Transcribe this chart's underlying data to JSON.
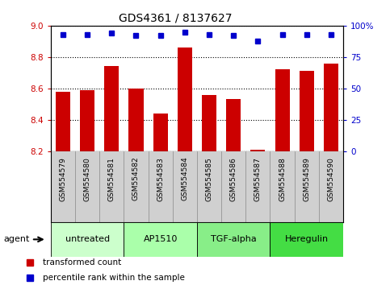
{
  "title": "GDS4361 / 8137627",
  "samples": [
    "GSM554579",
    "GSM554580",
    "GSM554581",
    "GSM554582",
    "GSM554583",
    "GSM554584",
    "GSM554585",
    "GSM554586",
    "GSM554587",
    "GSM554588",
    "GSM554589",
    "GSM554590"
  ],
  "bar_values": [
    8.58,
    8.59,
    8.74,
    8.6,
    8.44,
    8.86,
    8.56,
    8.53,
    8.21,
    8.72,
    8.71,
    8.76
  ],
  "dot_values": [
    93,
    93,
    94,
    92,
    92,
    95,
    93,
    92,
    88,
    93,
    93,
    93
  ],
  "bar_color": "#cc0000",
  "dot_color": "#0000cc",
  "ylim_left": [
    8.2,
    9.0
  ],
  "ylim_right": [
    0,
    100
  ],
  "yticks_left": [
    8.2,
    8.4,
    8.6,
    8.8,
    9.0
  ],
  "yticks_right": [
    0,
    25,
    50,
    75,
    100
  ],
  "ytick_labels_right": [
    "0",
    "25",
    "50",
    "75",
    "100%"
  ],
  "groups": [
    {
      "label": "untreated",
      "start": 0,
      "end": 3,
      "color": "#ccffcc"
    },
    {
      "label": "AP1510",
      "start": 3,
      "end": 6,
      "color": "#aaffaa"
    },
    {
      "label": "TGF-alpha",
      "start": 6,
      "end": 9,
      "color": "#88ee88"
    },
    {
      "label": "Heregulin",
      "start": 9,
      "end": 12,
      "color": "#44dd44"
    }
  ],
  "agent_label": "agent",
  "legend_items": [
    {
      "label": "transformed count",
      "color": "#cc0000"
    },
    {
      "label": "percentile rank within the sample",
      "color": "#0000cc"
    }
  ],
  "background_color": "#ffffff",
  "plot_bg": "#ffffff",
  "sample_label_bg": "#d0d0d0"
}
